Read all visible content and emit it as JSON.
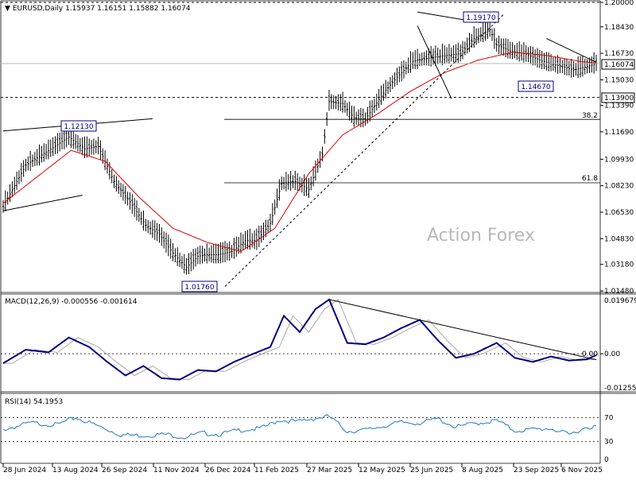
{
  "chart_data": {
    "type": "line",
    "symbol_header": "EURUSD,Daily",
    "ohlc_readout": [
      "1.15937",
      "1.16151",
      "1.15882",
      "1.16074"
    ],
    "current_price_label": "1.16074",
    "watermark": "Action Forex",
    "price_axis_ticks": [
      "1.20000",
      "1.18430",
      "1.16730",
      "1.15030",
      "1.13390",
      "1.11690",
      "1.09930",
      "1.08230",
      "1.06530",
      "1.04830",
      "1.03180",
      "1.01480"
    ],
    "x_tick_labels": [
      "28 Jun 2024",
      "13 Aug 2024",
      "26 Sep 2024",
      "11 Nov 2024",
      "26 Dec 2024",
      "11 Feb 2025",
      "27 Mar 2025",
      "12 May 2025",
      "25 Jun 2025",
      "8 Aug 2025",
      "23 Sep 2025",
      "6 Nov 2025"
    ],
    "annotations": {
      "high_label": "1.19170",
      "low_label": "1.01760",
      "swing_label": "1.12130",
      "pullback_label": "1.14670",
      "support_label": "1.13900",
      "fib_382": "38.2",
      "fib_618": "61.8"
    },
    "levels": {
      "top": 1.2,
      "support": 1.139,
      "fib_382": 1.1249,
      "fib_618": 1.0842
    },
    "price_range": [
      1.0148,
      1.2
    ],
    "price_anchors": [
      [
        0,
        1.069
      ],
      [
        10,
        1.0955
      ],
      [
        20,
        1.1048
      ],
      [
        29,
        1.1136
      ],
      [
        36,
        1.106
      ],
      [
        42,
        1.1075
      ],
      [
        49,
        1.085
      ],
      [
        56,
        1.072
      ],
      [
        63,
        1.057
      ],
      [
        69,
        1.051
      ],
      [
        75,
        1.039
      ],
      [
        81,
        1.03
      ],
      [
        86,
        1.037
      ],
      [
        90,
        1.038
      ],
      [
        95,
        1.038
      ],
      [
        101,
        1.04
      ],
      [
        107,
        1.047
      ],
      [
        112,
        1.047
      ],
      [
        118,
        1.058
      ],
      [
        123,
        1.0838
      ],
      [
        129,
        1.085
      ],
      [
        135,
        1.08
      ],
      [
        141,
        1.1025
      ],
      [
        144,
        1.1362
      ],
      [
        150,
        1.135
      ],
      [
        155,
        1.1258
      ],
      [
        160,
        1.125
      ],
      [
        168,
        1.1418
      ],
      [
        174,
        1.152
      ],
      [
        181,
        1.1622
      ],
      [
        187,
        1.1641
      ],
      [
        195,
        1.1658
      ],
      [
        202,
        1.1671
      ],
      [
        208,
        1.1768
      ],
      [
        215,
        1.1825
      ],
      [
        218,
        1.1727
      ],
      [
        224,
        1.1688
      ],
      [
        231,
        1.1668
      ],
      [
        238,
        1.1624
      ],
      [
        245,
        1.1595
      ],
      [
        252,
        1.1567
      ],
      [
        258,
        1.1588
      ],
      [
        262,
        1.1607
      ]
    ],
    "ma_anchors": [
      [
        0,
        1.071
      ],
      [
        30,
        1.105
      ],
      [
        45,
        1.098
      ],
      [
        60,
        1.075
      ],
      [
        75,
        1.055
      ],
      [
        90,
        1.046
      ],
      [
        105,
        1.04
      ],
      [
        120,
        1.055
      ],
      [
        135,
        1.09
      ],
      [
        150,
        1.115
      ],
      [
        165,
        1.128
      ],
      [
        180,
        1.143
      ],
      [
        195,
        1.155
      ],
      [
        210,
        1.163
      ],
      [
        225,
        1.168
      ],
      [
        240,
        1.166
      ],
      [
        255,
        1.162
      ],
      [
        262,
        1.161
      ]
    ],
    "bar_count": 263,
    "macd": {
      "header": "MACD(12,26,9) -0.000556 -0.001614",
      "ticks": [
        "0.019679",
        "0.00",
        "-0.012552"
      ],
      "range": [
        -0.012552,
        0.019679
      ],
      "anchors": [
        [
          0,
          -0.0035
        ],
        [
          10,
          0.0015
        ],
        [
          20,
          0.0005
        ],
        [
          29,
          0.006
        ],
        [
          38,
          0.0025
        ],
        [
          46,
          -0.003
        ],
        [
          54,
          -0.008
        ],
        [
          62,
          -0.0045
        ],
        [
          70,
          -0.009
        ],
        [
          78,
          -0.0095
        ],
        [
          86,
          -0.006
        ],
        [
          94,
          -0.0065
        ],
        [
          102,
          -0.003
        ],
        [
          112,
          0.0005
        ],
        [
          118,
          0.0025
        ],
        [
          124,
          0.014
        ],
        [
          131,
          0.008
        ],
        [
          138,
          0.0165
        ],
        [
          144,
          0.02
        ],
        [
          152,
          0.004
        ],
        [
          160,
          0.0035
        ],
        [
          168,
          0.006
        ],
        [
          176,
          0.0095
        ],
        [
          184,
          0.0125
        ],
        [
          192,
          0.005
        ],
        [
          200,
          -0.0015
        ],
        [
          208,
          0.0
        ],
        [
          218,
          0.004
        ],
        [
          226,
          -0.0015
        ],
        [
          234,
          -0.003
        ],
        [
          242,
          -0.001
        ],
        [
          250,
          -0.0025
        ],
        [
          258,
          -0.002
        ],
        [
          262,
          -0.0005
        ]
      ],
      "signal_lag": 4
    },
    "rsi": {
      "header": "RSI(14) 54.1953",
      "ticks": [
        "70",
        "30",
        "0"
      ],
      "range": [
        0,
        100
      ],
      "anchors": [
        [
          0,
          50
        ],
        [
          12,
          61
        ],
        [
          24,
          58
        ],
        [
          32,
          70
        ],
        [
          42,
          56
        ],
        [
          52,
          41
        ],
        [
          62,
          40
        ],
        [
          72,
          42
        ],
        [
          80,
          37
        ],
        [
          88,
          44
        ],
        [
          96,
          42
        ],
        [
          104,
          49
        ],
        [
          114,
          52
        ],
        [
          122,
          66
        ],
        [
          130,
          63
        ],
        [
          136,
          68
        ],
        [
          144,
          72
        ],
        [
          152,
          47
        ],
        [
          160,
          49
        ],
        [
          168,
          56
        ],
        [
          176,
          62
        ],
        [
          184,
          61
        ],
        [
          192,
          68
        ],
        [
          200,
          54
        ],
        [
          208,
          60
        ],
        [
          218,
          65
        ],
        [
          226,
          48
        ],
        [
          234,
          50
        ],
        [
          242,
          52
        ],
        [
          250,
          41
        ],
        [
          258,
          55
        ],
        [
          262,
          54
        ]
      ]
    }
  }
}
